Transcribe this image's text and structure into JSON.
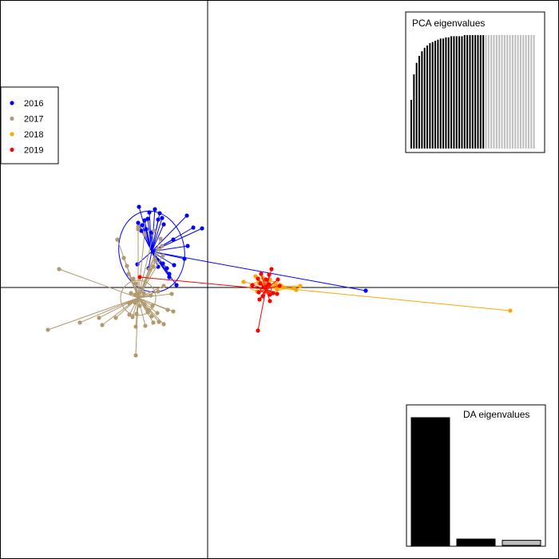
{
  "chart_data": {
    "type": "scatter",
    "plot_kind": "DAPC scatterplot (discriminant functions 1 and 2)",
    "axes": {
      "x_lim": [
        -2.6,
        4.4
      ],
      "y_lim": [
        -3.4,
        3.6
      ],
      "drawn_at_zero": true
    },
    "legend": {
      "position": "top-left",
      "entries": [
        {
          "label": "2016",
          "color": "#0000ff"
        },
        {
          "label": "2017",
          "color": "#b09a6e"
        },
        {
          "label": "2018",
          "color": "#ffa500"
        },
        {
          "label": "2019",
          "color": "#ff0000"
        }
      ]
    },
    "groups": [
      {
        "label": "2016",
        "color": "#0000ff",
        "centroid": [
          -0.7,
          0.45
        ],
        "ellipse": {
          "rx": 0.41,
          "ry": 0.51,
          "angle": -10
        },
        "points": [
          [
            -0.86,
            1.01
          ],
          [
            -0.73,
            0.94
          ],
          [
            -0.66,
            0.98
          ],
          [
            -0.6,
            0.93
          ],
          [
            -0.87,
            0.81
          ],
          [
            -0.82,
            0.78
          ],
          [
            -0.79,
            0.84
          ],
          [
            -0.75,
            0.86
          ],
          [
            -0.62,
            0.85
          ],
          [
            -0.57,
            0.87
          ],
          [
            -0.83,
            0.71
          ],
          [
            -0.77,
            0.73
          ],
          [
            -0.7,
            0.69
          ],
          [
            -0.55,
            0.79
          ],
          [
            -0.43,
            0.6
          ],
          [
            -0.26,
            0.9
          ],
          [
            -0.18,
            0.75
          ],
          [
            -0.07,
            0.74
          ],
          [
            -0.25,
            0.52
          ],
          [
            -0.29,
            0.36
          ],
          [
            -0.42,
            0.28
          ],
          [
            -0.48,
            0.17
          ],
          [
            -0.39,
            0.03
          ],
          [
            -0.56,
            0.3
          ],
          [
            -0.62,
            0.26
          ],
          [
            -0.51,
            0.24
          ],
          [
            -0.48,
            0.13
          ],
          [
            -0.74,
            0.24
          ],
          [
            -0.88,
            0.29
          ],
          [
            1.98,
            -0.04
          ]
        ]
      },
      {
        "label": "2017",
        "color": "#b09a6e",
        "centroid": [
          -0.87,
          -0.13
        ],
        "ellipse": {
          "rx": 0.22,
          "ry": 0.22,
          "angle": 0
        },
        "points": [
          [
            -1.13,
            0.6
          ],
          [
            -0.87,
            0.76
          ],
          [
            -0.87,
            0.73
          ],
          [
            -0.79,
            0.67
          ],
          [
            -0.67,
            0.71
          ],
          [
            -0.59,
            0.61
          ],
          [
            -0.57,
            0.52
          ],
          [
            -0.62,
            0.48
          ],
          [
            -0.56,
            0.4
          ],
          [
            -0.65,
            0.33
          ],
          [
            -1.05,
            0.37
          ],
          [
            -1.01,
            0.27
          ],
          [
            -0.99,
            0.17
          ],
          [
            -0.68,
            0.26
          ],
          [
            -0.73,
            0.23
          ],
          [
            -0.93,
            0.11
          ],
          [
            -0.9,
            0.05
          ],
          [
            -1.86,
            0.23
          ],
          [
            -0.96,
            -0.07
          ],
          [
            -0.91,
            -0.09
          ],
          [
            -0.8,
            -0.07
          ],
          [
            -0.71,
            -0.1
          ],
          [
            -0.62,
            -0.05
          ],
          [
            -0.55,
            0.02
          ],
          [
            -0.45,
            -0.08
          ],
          [
            -0.98,
            -0.2
          ],
          [
            -0.91,
            -0.19
          ],
          [
            -0.85,
            -0.23
          ],
          [
            -0.79,
            -0.21
          ],
          [
            -0.74,
            -0.28
          ],
          [
            -0.69,
            -0.23
          ],
          [
            -0.98,
            -0.34
          ],
          [
            -0.89,
            -0.33
          ],
          [
            -1.15,
            -0.38
          ],
          [
            -0.94,
            -0.37
          ],
          [
            -0.75,
            -0.31
          ],
          [
            -0.7,
            -0.36
          ],
          [
            -0.63,
            -0.32
          ],
          [
            -0.5,
            -0.28
          ],
          [
            -0.43,
            -0.3
          ],
          [
            -0.68,
            -0.44
          ],
          [
            -0.61,
            -0.43
          ],
          [
            -0.55,
            -0.46
          ],
          [
            -0.9,
            -0.49
          ],
          [
            -0.78,
            -0.48
          ],
          [
            -1.36,
            -0.38
          ],
          [
            -1.6,
            -0.44
          ],
          [
            -1.32,
            -0.47
          ],
          [
            -2.0,
            -0.53
          ],
          [
            -0.9,
            -0.85
          ]
        ]
      },
      {
        "label": "2018",
        "color": "#ffa500",
        "centroid": [
          0.74,
          0.01
        ],
        "ellipse": {
          "rx": 0.21,
          "ry": 0.07,
          "angle": 0
        },
        "points": [
          [
            0.45,
            0.07
          ],
          [
            0.6,
            0.14
          ],
          [
            0.64,
            0.06
          ],
          [
            0.69,
            0.12
          ],
          [
            0.7,
            0.03
          ],
          [
            0.78,
            0.1
          ],
          [
            0.85,
            0.04
          ],
          [
            0.87,
            -0.02
          ],
          [
            0.92,
            0.02
          ],
          [
            0.95,
            0.0
          ],
          [
            1.11,
            -0.03
          ],
          [
            1.16,
            0.02
          ],
          [
            1.08,
            -0.01
          ],
          [
            0.62,
            -0.05
          ],
          [
            0.75,
            -0.06
          ],
          [
            3.79,
            -0.29
          ]
        ]
      },
      {
        "label": "2019",
        "color": "#ff0000",
        "centroid": [
          0.73,
          -0.02
        ],
        "ellipse": {
          "rx": 0.07,
          "ry": 0.04,
          "angle": 0
        },
        "points": [
          [
            0.8,
            0.23
          ],
          [
            0.67,
            0.17
          ],
          [
            0.77,
            0.16
          ],
          [
            0.63,
            0.11
          ],
          [
            0.73,
            0.1
          ],
          [
            0.88,
            0.1
          ],
          [
            0.56,
            0.03
          ],
          [
            0.66,
            0.05
          ],
          [
            0.77,
            0.04
          ],
          [
            0.9,
            0.02
          ],
          [
            0.64,
            -0.06
          ],
          [
            0.69,
            -0.11
          ],
          [
            0.78,
            -0.09
          ],
          [
            0.82,
            -0.07
          ],
          [
            0.87,
            -0.08
          ],
          [
            0.65,
            -0.15
          ],
          [
            0.78,
            -0.17
          ],
          [
            0.63,
            -0.54
          ],
          [
            -0.85,
            0.13
          ]
        ]
      }
    ],
    "inset_pca": {
      "title": "PCA eigenvalues",
      "retained": 28,
      "values": [
        0.42,
        0.64,
        0.74,
        0.8,
        0.84,
        0.87,
        0.89,
        0.91,
        0.92,
        0.93,
        0.94,
        0.95,
        0.95,
        0.96,
        0.96,
        0.97,
        0.97,
        0.97,
        0.97,
        0.97,
        0.98,
        0.98,
        0.98,
        0.98,
        0.98,
        0.98,
        0.98,
        0.98,
        0.98,
        0.98,
        0.98,
        0.98,
        0.98,
        0.98,
        0.98,
        0.98,
        0.98,
        0.98,
        0.98,
        0.98,
        0.98,
        0.98,
        0.98,
        0.98,
        0.98,
        0.98,
        0.98
      ],
      "fill_retained": "#000000",
      "fill_other": "#bdbdbd"
    },
    "inset_da": {
      "title": "DA eigenvalues",
      "values": [
        1.0,
        0.05,
        0.04
      ],
      "fills": [
        "#000000",
        "#000000",
        "#bdbdbd"
      ]
    }
  }
}
